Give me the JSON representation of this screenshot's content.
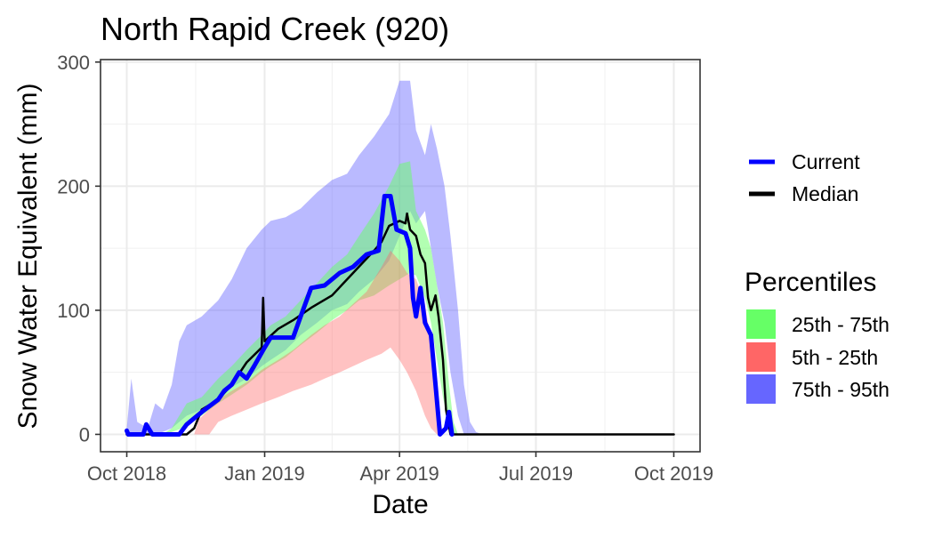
{
  "chart_data": {
    "type": "area",
    "title": "North Rapid Creek (920)",
    "xlabel": "Date",
    "ylabel": "Snow Water Equivalent (mm)",
    "x_ticks": [
      {
        "date": "2018-10-01",
        "label": "Oct 2018"
      },
      {
        "date": "2019-01-01",
        "label": "Jan 2019"
      },
      {
        "date": "2019-04-01",
        "label": "Apr 2019"
      },
      {
        "date": "2019-07-01",
        "label": "Jul 2019"
      },
      {
        "date": "2019-10-01",
        "label": "Oct 2019"
      }
    ],
    "xlim": [
      "2018-10-01",
      "2019-10-01"
    ],
    "y_ticks": [
      0,
      100,
      200,
      300
    ],
    "ylim": [
      -14,
      302
    ],
    "grid": true,
    "legend_placement": "right",
    "lines_legend": [
      {
        "label": "Current",
        "color": "#0000ff"
      },
      {
        "label": "Median",
        "color": "#000000"
      }
    ],
    "percentile_legend": {
      "title": "Percentiles",
      "entries": [
        {
          "label": "25th - 75th",
          "color": "#66ff66"
        },
        {
          "label": "5th - 25th",
          "color": "#ff6666"
        },
        {
          "label": "75th - 95th",
          "color": "#6666ff"
        }
      ]
    },
    "bands": [
      {
        "name": "75th - 95th",
        "color": "#6666ff",
        "opacity": 0.45,
        "points": [
          [
            "2018-10-01",
            0,
            5
          ],
          [
            "2018-10-04",
            0,
            45
          ],
          [
            "2018-10-08",
            0,
            10
          ],
          [
            "2018-10-15",
            0,
            5
          ],
          [
            "2018-10-20",
            0,
            25
          ],
          [
            "2018-10-25",
            2,
            20
          ],
          [
            "2018-10-31",
            5,
            40
          ],
          [
            "2018-11-05",
            10,
            75
          ],
          [
            "2018-11-10",
            15,
            88
          ],
          [
            "2018-11-20",
            20,
            95
          ],
          [
            "2018-12-01",
            30,
            108
          ],
          [
            "2018-12-10",
            38,
            125
          ],
          [
            "2018-12-20",
            45,
            150
          ],
          [
            "2018-12-30",
            55,
            165
          ],
          [
            "2019-01-05",
            60,
            172
          ],
          [
            "2019-01-15",
            68,
            175
          ],
          [
            "2019-01-25",
            80,
            182
          ],
          [
            "2019-02-05",
            90,
            195
          ],
          [
            "2019-02-15",
            100,
            205
          ],
          [
            "2019-02-25",
            105,
            210
          ],
          [
            "2019-03-05",
            115,
            225
          ],
          [
            "2019-03-15",
            125,
            240
          ],
          [
            "2019-03-25",
            140,
            258
          ],
          [
            "2019-04-01",
            160,
            285
          ],
          [
            "2019-04-08",
            180,
            285
          ],
          [
            "2019-04-12",
            170,
            245
          ],
          [
            "2019-04-18",
            180,
            225
          ],
          [
            "2019-04-22",
            150,
            250
          ],
          [
            "2019-04-26",
            120,
            230
          ],
          [
            "2019-05-01",
            90,
            200
          ],
          [
            "2019-05-05",
            50,
            160
          ],
          [
            "2019-05-10",
            15,
            100
          ],
          [
            "2019-05-14",
            0,
            40
          ],
          [
            "2019-05-18",
            0,
            10
          ],
          [
            "2019-05-22",
            0,
            2
          ],
          [
            "2019-05-26",
            0,
            0
          ]
        ]
      },
      {
        "name": "25th - 75th",
        "color": "#66ff66",
        "opacity": 0.5,
        "points": [
          [
            "2018-10-25",
            0,
            0
          ],
          [
            "2018-10-31",
            2,
            5
          ],
          [
            "2018-11-05",
            4,
            15
          ],
          [
            "2018-11-10",
            8,
            25
          ],
          [
            "2018-11-20",
            15,
            30
          ],
          [
            "2018-12-01",
            25,
            45
          ],
          [
            "2018-12-10",
            32,
            55
          ],
          [
            "2018-12-20",
            40,
            68
          ],
          [
            "2018-12-30",
            50,
            80
          ],
          [
            "2019-01-05",
            55,
            88
          ],
          [
            "2019-01-15",
            62,
            95
          ],
          [
            "2019-01-25",
            72,
            108
          ],
          [
            "2019-02-05",
            82,
            122
          ],
          [
            "2019-02-15",
            92,
            135
          ],
          [
            "2019-02-25",
            100,
            145
          ],
          [
            "2019-03-05",
            108,
            160
          ],
          [
            "2019-03-15",
            112,
            178
          ],
          [
            "2019-03-25",
            120,
            200
          ],
          [
            "2019-04-01",
            125,
            218
          ],
          [
            "2019-04-08",
            130,
            220
          ],
          [
            "2019-04-12",
            128,
            180
          ],
          [
            "2019-04-18",
            110,
            165
          ],
          [
            "2019-04-22",
            90,
            150
          ],
          [
            "2019-04-26",
            60,
            120
          ],
          [
            "2019-04-30",
            30,
            90
          ],
          [
            "2019-05-04",
            8,
            40
          ],
          [
            "2019-05-07",
            0,
            10
          ],
          [
            "2019-05-10",
            0,
            0
          ]
        ]
      },
      {
        "name": "5th - 25th",
        "color": "#ff6666",
        "opacity": 0.4,
        "points": [
          [
            "2018-11-15",
            0,
            0
          ],
          [
            "2018-11-18",
            0,
            12
          ],
          [
            "2018-11-25",
            0,
            20
          ],
          [
            "2018-12-01",
            10,
            28
          ],
          [
            "2018-12-10",
            15,
            35
          ],
          [
            "2018-12-20",
            20,
            42
          ],
          [
            "2018-12-30",
            25,
            52
          ],
          [
            "2019-01-10",
            30,
            60
          ],
          [
            "2019-01-20",
            35,
            68
          ],
          [
            "2019-02-01",
            40,
            80
          ],
          [
            "2019-02-10",
            45,
            88
          ],
          [
            "2019-02-20",
            50,
            95
          ],
          [
            "2019-03-01",
            55,
            105
          ],
          [
            "2019-03-10",
            60,
            115
          ],
          [
            "2019-03-20",
            65,
            135
          ],
          [
            "2019-03-26",
            70,
            148
          ],
          [
            "2019-04-01",
            60,
            140
          ],
          [
            "2019-04-06",
            50,
            130
          ],
          [
            "2019-04-12",
            35,
            125
          ],
          [
            "2019-04-18",
            15,
            105
          ],
          [
            "2019-04-22",
            5,
            75
          ],
          [
            "2019-04-26",
            0,
            30
          ],
          [
            "2019-04-30",
            0,
            0
          ]
        ]
      }
    ],
    "series": [
      {
        "name": "Median",
        "color": "#000000",
        "points": [
          [
            "2018-10-01",
            0
          ],
          [
            "2018-11-10",
            0
          ],
          [
            "2018-11-15",
            5
          ],
          [
            "2018-11-20",
            20
          ],
          [
            "2018-12-01",
            28
          ],
          [
            "2018-12-10",
            40
          ],
          [
            "2018-12-20",
            58
          ],
          [
            "2018-12-30",
            70
          ],
          [
            "2018-12-31",
            110
          ],
          [
            "2019-01-01",
            75
          ],
          [
            "2019-01-10",
            85
          ],
          [
            "2019-01-20",
            92
          ],
          [
            "2019-02-01",
            102
          ],
          [
            "2019-02-15",
            112
          ],
          [
            "2019-03-01",
            130
          ],
          [
            "2019-03-15",
            148
          ],
          [
            "2019-03-20",
            155
          ],
          [
            "2019-03-25",
            168
          ],
          [
            "2019-04-01",
            172
          ],
          [
            "2019-04-05",
            170
          ],
          [
            "2019-04-06",
            178
          ],
          [
            "2019-04-08",
            165
          ],
          [
            "2019-04-12",
            160
          ],
          [
            "2019-04-15",
            145
          ],
          [
            "2019-04-18",
            138
          ],
          [
            "2019-04-20",
            110
          ],
          [
            "2019-04-22",
            100
          ],
          [
            "2019-04-25",
            112
          ],
          [
            "2019-04-27",
            95
          ],
          [
            "2019-04-30",
            60
          ],
          [
            "2019-05-02",
            20
          ],
          [
            "2019-05-05",
            0
          ],
          [
            "2019-10-01",
            0
          ]
        ]
      },
      {
        "name": "Current",
        "color": "#0000ff",
        "points": [
          [
            "2018-10-01",
            3
          ],
          [
            "2018-10-02",
            0
          ],
          [
            "2018-10-12",
            0
          ],
          [
            "2018-10-14",
            8
          ],
          [
            "2018-10-18",
            0
          ],
          [
            "2018-11-05",
            0
          ],
          [
            "2018-11-10",
            8
          ],
          [
            "2018-11-20",
            18
          ],
          [
            "2018-12-01",
            28
          ],
          [
            "2018-12-05",
            35
          ],
          [
            "2018-12-10",
            40
          ],
          [
            "2018-12-15",
            50
          ],
          [
            "2018-12-20",
            45
          ],
          [
            "2018-12-25",
            55
          ],
          [
            "2019-01-01",
            70
          ],
          [
            "2019-01-05",
            78
          ],
          [
            "2019-01-20",
            78
          ],
          [
            "2019-01-25",
            95
          ],
          [
            "2019-02-01",
            118
          ],
          [
            "2019-02-10",
            120
          ],
          [
            "2019-02-20",
            130
          ],
          [
            "2019-03-01",
            135
          ],
          [
            "2019-03-10",
            145
          ],
          [
            "2019-03-18",
            148
          ],
          [
            "2019-03-22",
            192
          ],
          [
            "2019-03-26",
            192
          ],
          [
            "2019-03-30",
            165
          ],
          [
            "2019-04-05",
            162
          ],
          [
            "2019-04-08",
            150
          ],
          [
            "2019-04-10",
            110
          ],
          [
            "2019-04-12",
            95
          ],
          [
            "2019-04-15",
            118
          ],
          [
            "2019-04-18",
            90
          ],
          [
            "2019-04-22",
            80
          ],
          [
            "2019-04-25",
            40
          ],
          [
            "2019-04-28",
            0
          ],
          [
            "2019-05-02",
            5
          ],
          [
            "2019-05-04",
            18
          ],
          [
            "2019-05-06",
            0
          ]
        ]
      }
    ]
  }
}
